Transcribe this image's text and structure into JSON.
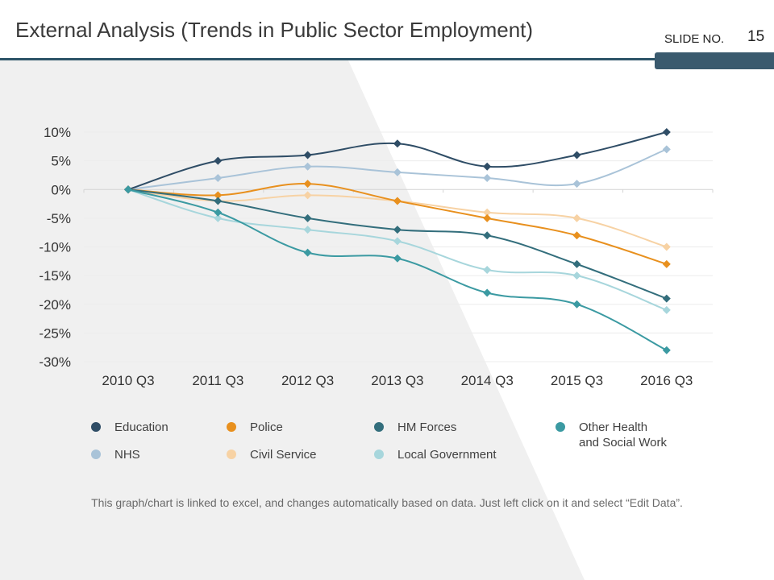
{
  "slide": {
    "title": "External Analysis (Trends in Public Sector Employment)",
    "slide_label": "SLIDE NO.",
    "slide_number": "15",
    "footnote": "This graph/chart is linked to excel, and changes automatically based on data. Just left click on it and select “Edit Data”."
  },
  "colors": {
    "header_rule": "#2d5468",
    "background_band": "#f0f0f0"
  },
  "chart_data": {
    "type": "line",
    "categories": [
      "2010 Q3",
      "2011 Q3",
      "2012 Q3",
      "2013 Q3",
      "2014 Q3",
      "2015 Q3",
      "2016 Q3"
    ],
    "yticks": [
      "10%",
      "5%",
      "0%",
      "-5%",
      "-10%",
      "-15%",
      "-20%",
      "-25%",
      "-30%"
    ],
    "ylim": [
      -30,
      10
    ],
    "grid": true,
    "smooth": true,
    "legend_position": "bottom",
    "series": [
      {
        "name": "Education",
        "color": "#2f4d66",
        "values": [
          0,
          5,
          6,
          8,
          4,
          6,
          10
        ]
      },
      {
        "name": "NHS",
        "color": "#a9c3d8",
        "values": [
          0,
          2,
          4,
          3,
          2,
          1,
          7
        ]
      },
      {
        "name": "Police",
        "color": "#e8901e",
        "values": [
          0,
          -1,
          1,
          -2,
          -5,
          -8,
          -13
        ]
      },
      {
        "name": "Civil Service",
        "color": "#f7d2a4",
        "values": [
          0,
          -2,
          -1,
          -2,
          -4,
          -5,
          -10
        ]
      },
      {
        "name": "HM Forces",
        "color": "#336e7c",
        "values": [
          0,
          -2,
          -5,
          -7,
          -8,
          -13,
          -19
        ]
      },
      {
        "name": "Local Government",
        "color": "#a7d6dc",
        "values": [
          0,
          -5,
          -7,
          -9,
          -14,
          -15,
          -21
        ]
      },
      {
        "name": "Other Health and Social Work",
        "name_lines": [
          "Other Health",
          "and Social Work"
        ],
        "color": "#3b9aa2",
        "values": [
          0,
          -4,
          -11,
          -12,
          -18,
          -20,
          -28
        ]
      }
    ]
  }
}
